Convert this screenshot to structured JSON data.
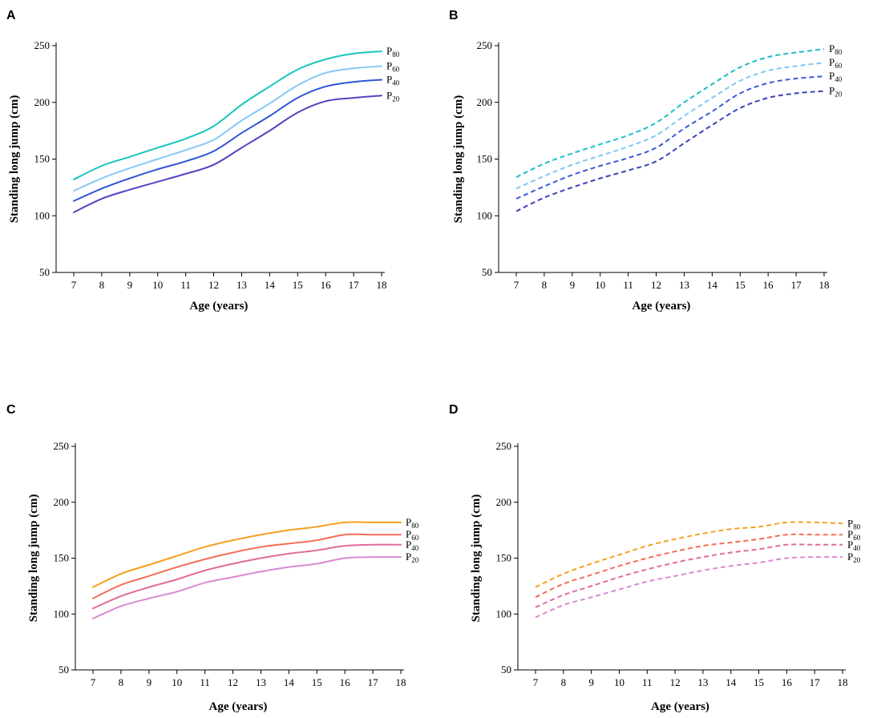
{
  "figure": {
    "panels": [
      "A",
      "B",
      "C",
      "D"
    ],
    "colors": {
      "A": [
        "#5243c2",
        "#2f55d4",
        "#86c8f5",
        "#19c4c0"
      ],
      "B": [
        "#3a43b8",
        "#3d5ad8",
        "#7ec8f2",
        "#1cbfc4"
      ],
      "C": [
        "#d98ad1",
        "#e26a9d",
        "#f46d55",
        "#f5a01c"
      ],
      "D": [
        "#d98ad1",
        "#e26a9d",
        "#f46d55",
        "#f5a01c"
      ],
      "axis": "#000000"
    }
  },
  "chart_data": [
    {
      "panel": "A",
      "type": "line",
      "line_style": "solid",
      "xlabel": "Age (years)",
      "ylabel": "Standing long jump (cm)",
      "xlim": [
        6.8,
        18.3
      ],
      "ylim": [
        50,
        250
      ],
      "x_ticks": [
        7,
        8,
        9,
        10,
        11,
        12,
        13,
        14,
        15,
        16,
        17,
        18
      ],
      "y_ticks": [
        50,
        100,
        150,
        200,
        250
      ],
      "x": [
        7,
        8,
        9,
        10,
        11,
        12,
        13,
        14,
        15,
        16,
        17,
        18
      ],
      "series": [
        {
          "name": "P20",
          "label_main": "P",
          "label_sub": "20",
          "values": [
            103,
            115,
            123,
            130,
            137,
            145,
            160,
            175,
            191,
            201,
            204,
            206
          ]
        },
        {
          "name": "P40",
          "label_main": "P",
          "label_sub": "40",
          "values": [
            113,
            124,
            133,
            141,
            148,
            157,
            173,
            188,
            204,
            214,
            218,
            220
          ]
        },
        {
          "name": "P60",
          "label_main": "P",
          "label_sub": "60",
          "values": [
            122,
            133,
            142,
            150,
            158,
            167,
            184,
            199,
            215,
            226,
            230,
            232
          ]
        },
        {
          "name": "P80",
          "label_main": "P",
          "label_sub": "80",
          "values": [
            132,
            144,
            152,
            160,
            168,
            179,
            198,
            214,
            229,
            238,
            243,
            245
          ]
        }
      ]
    },
    {
      "panel": "B",
      "type": "line",
      "line_style": "dashed",
      "xlabel": "Age (years)",
      "ylabel": "Standing long jump (cm)",
      "xlim": [
        6.8,
        18.3
      ],
      "ylim": [
        50,
        250
      ],
      "x_ticks": [
        7,
        8,
        9,
        10,
        11,
        12,
        13,
        14,
        15,
        16,
        17,
        18
      ],
      "y_ticks": [
        50,
        100,
        150,
        200,
        250
      ],
      "x": [
        7,
        8,
        9,
        10,
        11,
        12,
        13,
        14,
        15,
        16,
        17,
        18
      ],
      "series": [
        {
          "name": "P20",
          "label_main": "P",
          "label_sub": "20",
          "values": [
            104,
            116,
            125,
            133,
            140,
            148,
            164,
            180,
            195,
            204,
            208,
            210
          ]
        },
        {
          "name": "P40",
          "label_main": "P",
          "label_sub": "40",
          "values": [
            115,
            126,
            136,
            144,
            151,
            160,
            177,
            192,
            208,
            217,
            221,
            223
          ]
        },
        {
          "name": "P60",
          "label_main": "P",
          "label_sub": "60",
          "values": [
            124,
            135,
            145,
            153,
            161,
            171,
            188,
            204,
            219,
            228,
            232,
            235
          ]
        },
        {
          "name": "P80",
          "label_main": "P",
          "label_sub": "80",
          "values": [
            134,
            146,
            155,
            163,
            171,
            182,
            200,
            216,
            231,
            240,
            244,
            247
          ]
        }
      ]
    },
    {
      "panel": "C",
      "type": "line",
      "line_style": "solid",
      "xlabel": "Age (years)",
      "ylabel": "Standing long jump (cm)",
      "xlim": [
        6.8,
        18.3
      ],
      "ylim": [
        50,
        250
      ],
      "x_ticks": [
        7,
        8,
        9,
        10,
        11,
        12,
        13,
        14,
        15,
        16,
        17,
        18
      ],
      "y_ticks": [
        50,
        100,
        150,
        200,
        250
      ],
      "x": [
        7,
        8,
        9,
        10,
        11,
        12,
        13,
        14,
        15,
        16,
        17,
        18
      ],
      "series": [
        {
          "name": "P20",
          "label_main": "P",
          "label_sub": "20",
          "values": [
            96,
            107,
            114,
            120,
            128,
            133,
            138,
            142,
            145,
            150,
            151,
            151
          ]
        },
        {
          "name": "P40",
          "label_main": "P",
          "label_sub": "40",
          "values": [
            105,
            116,
            124,
            131,
            139,
            145,
            150,
            154,
            157,
            161,
            162,
            162
          ]
        },
        {
          "name": "P60",
          "label_main": "P",
          "label_sub": "60",
          "values": [
            114,
            126,
            134,
            142,
            149,
            155,
            160,
            163,
            166,
            171,
            171,
            171
          ]
        },
        {
          "name": "P80",
          "label_main": "P",
          "label_sub": "80",
          "values": [
            124,
            136,
            144,
            152,
            160,
            166,
            171,
            175,
            178,
            182,
            182,
            182
          ]
        }
      ]
    },
    {
      "panel": "D",
      "type": "line",
      "line_style": "dashed",
      "xlabel": "Age (years)",
      "ylabel": "Standing long jump (cm)",
      "xlim": [
        6.8,
        18.3
      ],
      "ylim": [
        50,
        250
      ],
      "x_ticks": [
        7,
        8,
        9,
        10,
        11,
        12,
        13,
        14,
        15,
        16,
        17,
        18
      ],
      "y_ticks": [
        50,
        100,
        150,
        200,
        250
      ],
      "x": [
        7,
        8,
        9,
        10,
        11,
        12,
        13,
        14,
        15,
        16,
        17,
        18
      ],
      "series": [
        {
          "name": "P20",
          "label_main": "P",
          "label_sub": "20",
          "values": [
            97,
            108,
            115,
            122,
            129,
            134,
            139,
            143,
            146,
            150,
            151,
            151
          ]
        },
        {
          "name": "P40",
          "label_main": "P",
          "label_sub": "40",
          "values": [
            106,
            117,
            125,
            133,
            140,
            146,
            151,
            155,
            158,
            162,
            162,
            162
          ]
        },
        {
          "name": "P60",
          "label_main": "P",
          "label_sub": "60",
          "values": [
            115,
            127,
            135,
            143,
            150,
            156,
            161,
            164,
            167,
            171,
            171,
            171
          ]
        },
        {
          "name": "P80",
          "label_main": "P",
          "label_sub": "80",
          "values": [
            124,
            136,
            145,
            153,
            161,
            167,
            172,
            176,
            178,
            182,
            182,
            181
          ]
        }
      ]
    }
  ]
}
